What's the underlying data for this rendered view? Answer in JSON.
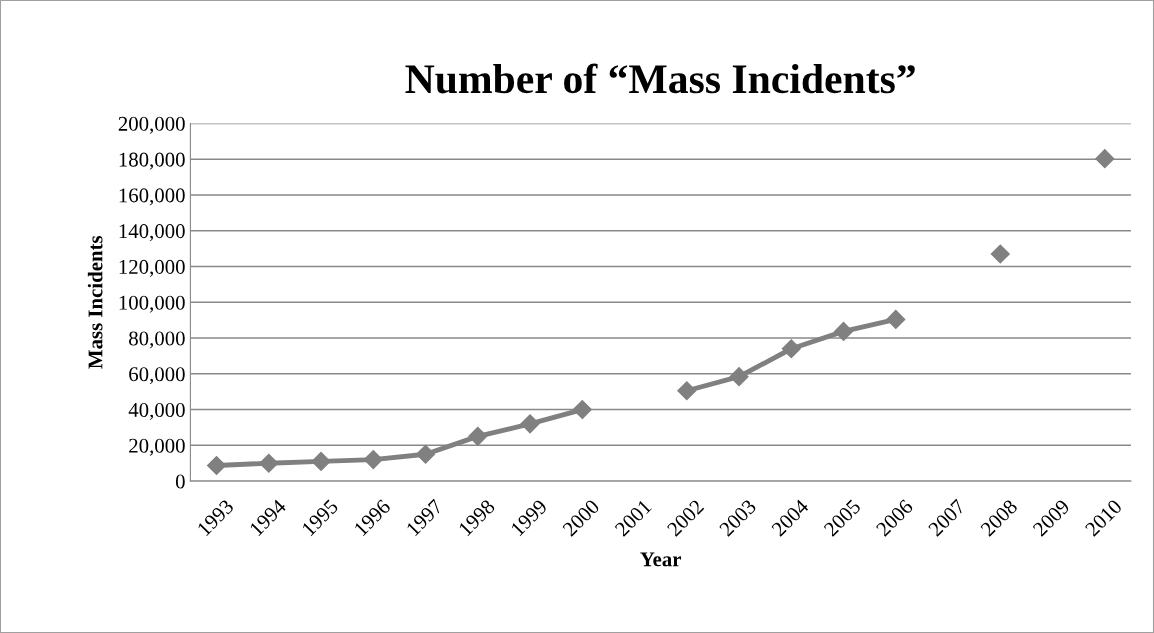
{
  "chart_data": {
    "type": "line",
    "title": "Number of “Mass Incidents”",
    "xlabel": "Year",
    "ylabel": "Mass Incidents",
    "categories": [
      "1993",
      "1994",
      "1995",
      "1996",
      "1997",
      "1998",
      "1999",
      "2000",
      "2001",
      "2002",
      "2003",
      "2004",
      "2005",
      "2006",
      "2007",
      "2008",
      "2009",
      "2010"
    ],
    "series": [
      {
        "color": "#808080",
        "values": [
          8700,
          10000,
          11000,
          12000,
          15000,
          25000,
          32000,
          40000,
          null,
          50500,
          58400,
          74000,
          83700,
          90400,
          null,
          127000,
          null,
          180300
        ]
      }
    ],
    "ylim": [
      0,
      200000
    ],
    "yticks": [
      {
        "value": 0,
        "label": "0"
      },
      {
        "value": 20000,
        "label": "20,000"
      },
      {
        "value": 40000,
        "label": "40,000"
      },
      {
        "value": 60000,
        "label": "60,000"
      },
      {
        "value": 80000,
        "label": "80,000"
      },
      {
        "value": 100000,
        "label": "100,000"
      },
      {
        "value": 120000,
        "label": "120,000"
      },
      {
        "value": 140000,
        "label": "140,000"
      },
      {
        "value": 160000,
        "label": "160,000"
      },
      {
        "value": 180000,
        "label": "180,000"
      },
      {
        "value": 200000,
        "label": "200,000"
      }
    ],
    "grid": "y",
    "marker": "diamond",
    "line_style": "solid",
    "legend": false
  }
}
